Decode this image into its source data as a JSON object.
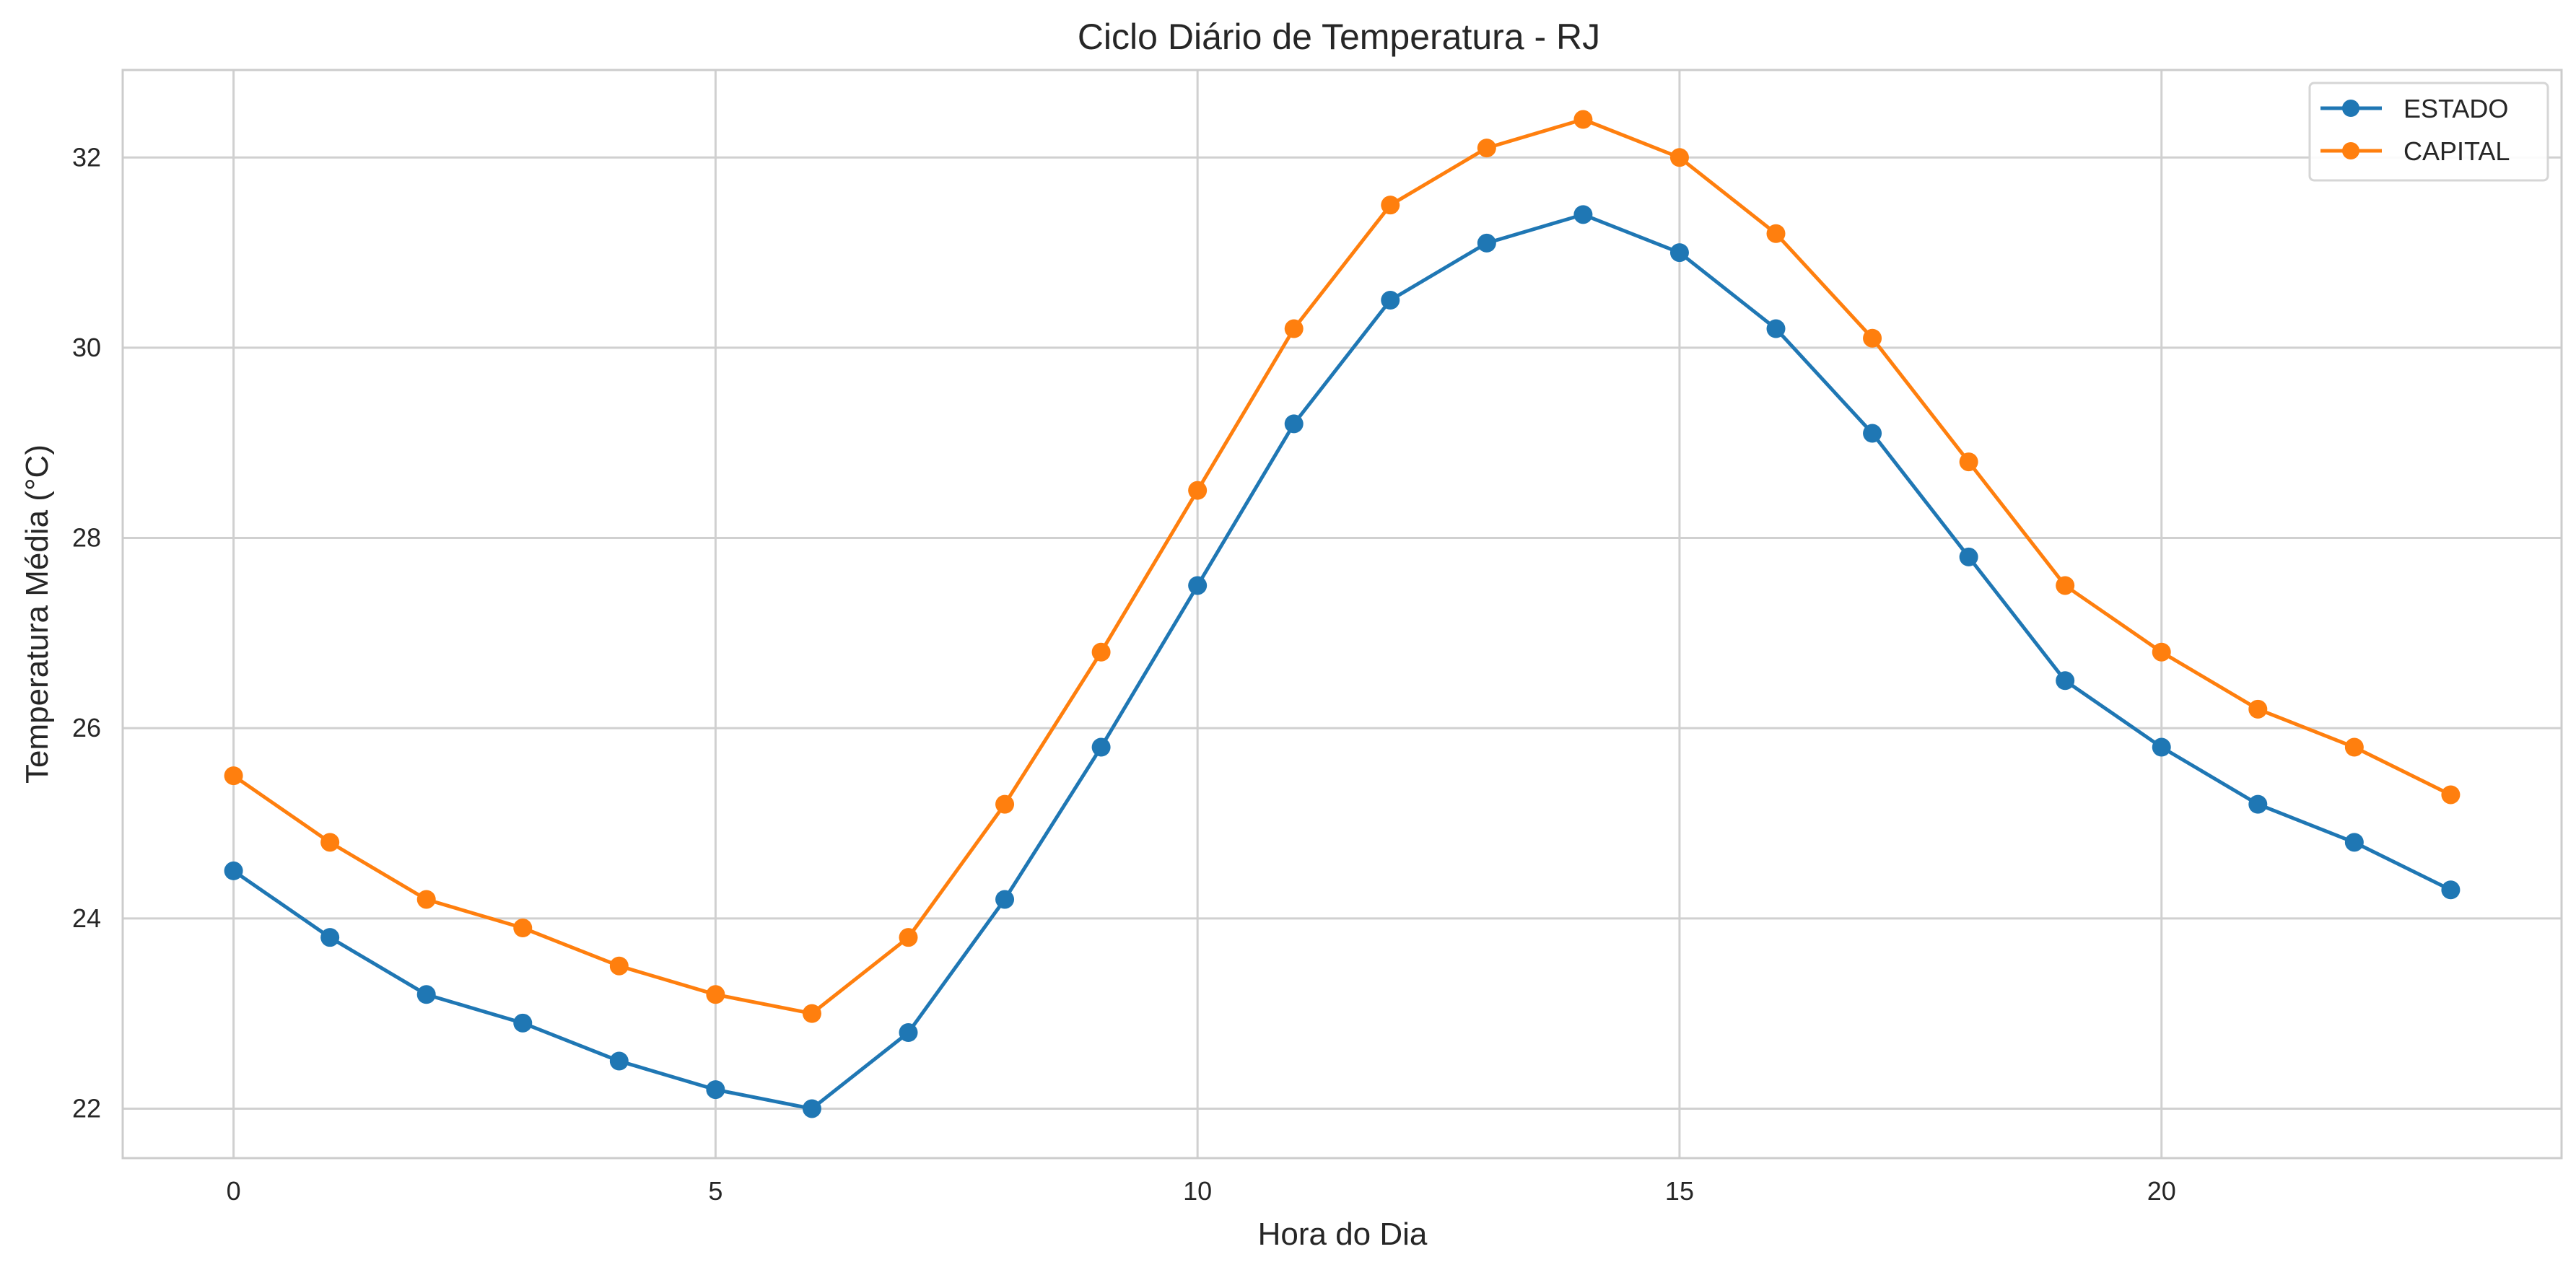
{
  "chart_data": {
    "type": "line",
    "title": "Ciclo Diário de Temperatura - RJ",
    "xlabel": "Hora do Dia",
    "ylabel": "Temperatura Média (°C)",
    "x": [
      0,
      1,
      2,
      3,
      4,
      5,
      6,
      7,
      8,
      9,
      10,
      11,
      12,
      13,
      14,
      15,
      16,
      17,
      18,
      19,
      20,
      21,
      22,
      23
    ],
    "xlim": [
      -1.15,
      24.15
    ],
    "ylim": [
      21.48,
      32.92
    ],
    "xticks": [
      0,
      5,
      10,
      15,
      20
    ],
    "yticks": [
      22,
      24,
      26,
      28,
      30,
      32
    ],
    "grid": true,
    "legend_position": "top-right",
    "series": [
      {
        "name": "ESTADO",
        "color": "#1f77b4",
        "values": [
          24.5,
          23.8,
          23.2,
          22.9,
          22.5,
          22.2,
          22.0,
          22.8,
          24.2,
          25.8,
          27.5,
          29.2,
          30.5,
          31.1,
          31.4,
          31.0,
          30.2,
          29.1,
          27.8,
          26.5,
          25.8,
          25.2,
          24.8,
          24.3
        ]
      },
      {
        "name": "CAPITAL",
        "color": "#ff7f0e",
        "values": [
          25.5,
          24.8,
          24.2,
          23.9,
          23.5,
          23.2,
          23.0,
          23.8,
          25.2,
          26.8,
          28.5,
          30.2,
          31.5,
          32.1,
          32.4,
          32.0,
          31.2,
          30.1,
          28.8,
          27.5,
          26.8,
          26.2,
          25.8,
          25.3
        ]
      }
    ]
  }
}
